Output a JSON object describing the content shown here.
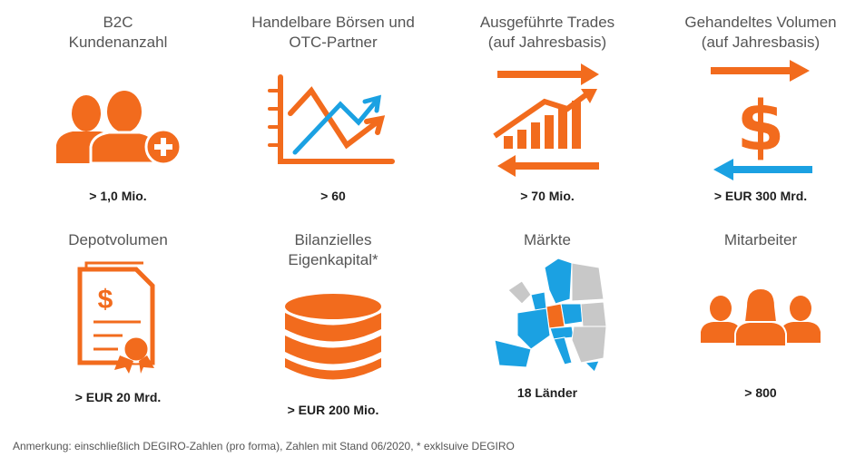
{
  "tiles": [
    {
      "title": [
        "B2C",
        "Kundenanzahl"
      ],
      "value": "> 1,0 Mio."
    },
    {
      "title": [
        "Handelbare Börsen und",
        "OTC-Partner"
      ],
      "value": "> 60"
    },
    {
      "title": [
        "Ausgeführte Trades",
        "(auf Jahresbasis)"
      ],
      "value": "> 70 Mio."
    },
    {
      "title": [
        "Gehandeltes Volumen",
        "(auf Jahresbasis)"
      ],
      "value": "> EUR 300 Mrd."
    },
    {
      "title": [
        "Depotvolumen"
      ],
      "value": "> EUR 20 Mrd."
    },
    {
      "title": [
        "Bilanzielles",
        "Eigenkapital*"
      ],
      "value": "> EUR 200 Mio."
    },
    {
      "title": [
        "Märkte"
      ],
      "value": "18 Länder"
    },
    {
      "title": [
        "Mitarbeiter"
      ],
      "value": "> 800"
    }
  ],
  "note": "Anmerkung: einschließlich DEGIRO-Zahlen (pro forma), Zahlen mit Stand 06/2020, * exklsuive DEGIRO"
}
